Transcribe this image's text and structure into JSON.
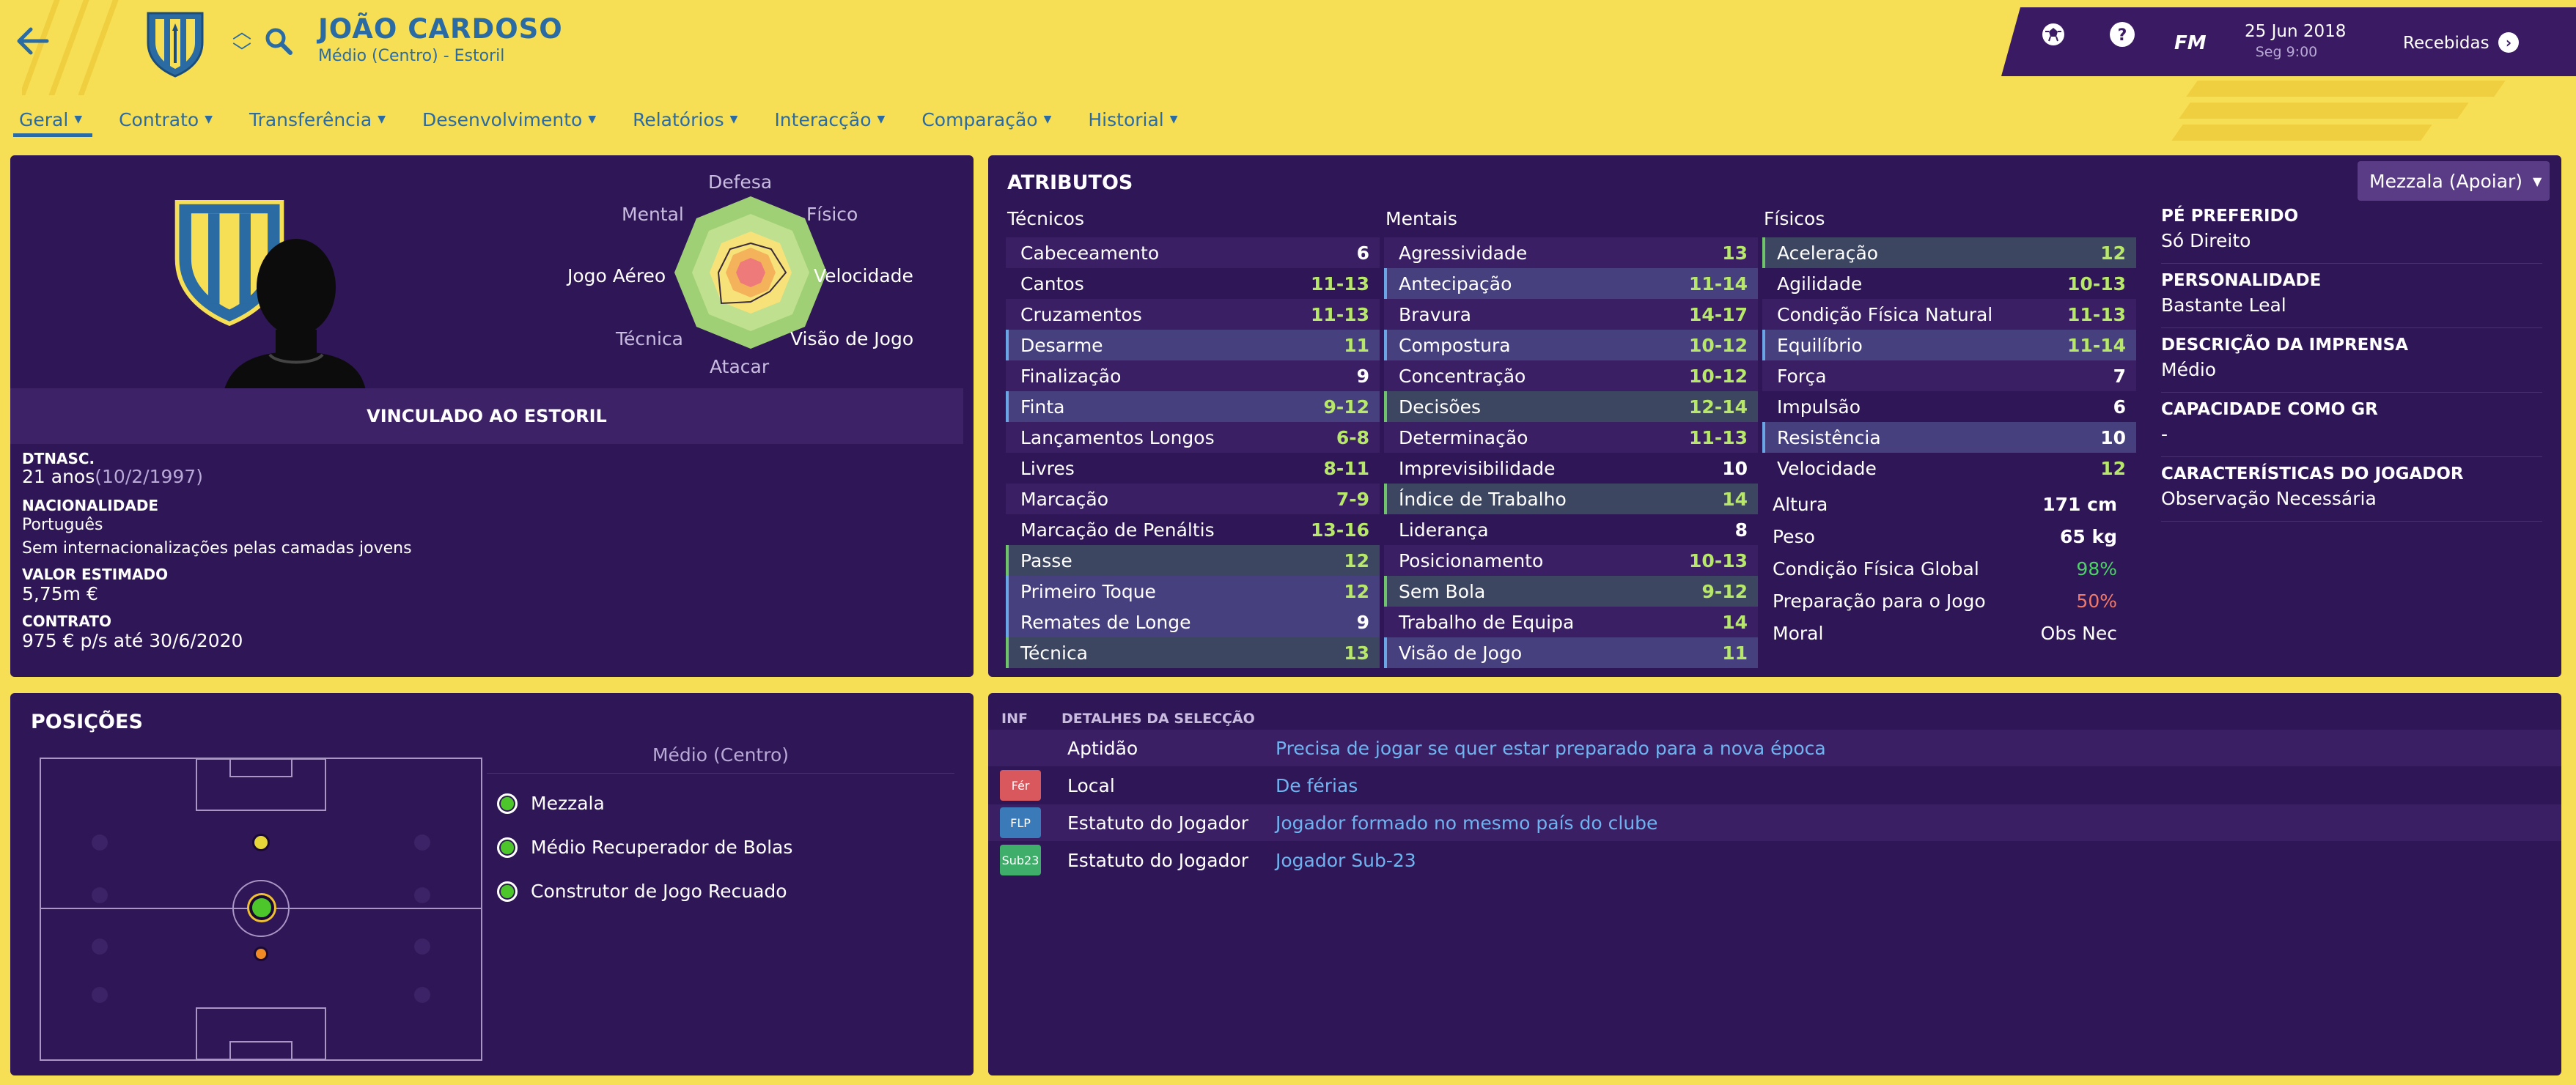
{
  "header": {
    "player_name": "JOÃO CARDOSO",
    "player_subtitle": "Médio (Centro) - Estoril",
    "logo": "FM",
    "date": "25 Jun 2018",
    "day_time": "Seg 9:00",
    "inbox_label": "Recebidas"
  },
  "menu": [
    {
      "label": "Geral"
    },
    {
      "label": "Contrato"
    },
    {
      "label": "Transferência"
    },
    {
      "label": "Desenvolvimento"
    },
    {
      "label": "Relatórios"
    },
    {
      "label": "Interacção"
    },
    {
      "label": "Comparação"
    },
    {
      "label": "Historial"
    }
  ],
  "general": {
    "radar_labels": {
      "top": "Defesa",
      "top_left": "Mental",
      "top_right": "Físico",
      "left": "Jogo Aéreo",
      "right": "Velocidade",
      "bottom_left": "Técnica",
      "bottom_right": "Visão de Jogo",
      "bottom": "Atacar"
    },
    "contract_banner": "VINCULADO AO ESTORIL",
    "dob_label": "DTNASC.",
    "age": "21 anos",
    "dob": "(10/2/1997)",
    "nationality_label": "NACIONALIDADE",
    "nationality": "Português",
    "youth_caps": "Sem internacionalizações pelas camadas jovens",
    "value_label": "VALOR ESTIMADO",
    "value": "5,75m €",
    "contract_label": "CONTRATO",
    "contract": "975 € p/s até 30/6/2020"
  },
  "attributes": {
    "title": "ATRIBUTOS",
    "role_selector": "Mezzala (Apoiar)",
    "technical_heading": "Técnicos",
    "mental_heading": "Mentais",
    "physical_heading": "Físicos",
    "technical": [
      {
        "name": "Cabeceamento",
        "value": "6",
        "hl": ""
      },
      {
        "name": "Cantos",
        "value": "11-13",
        "hl": ""
      },
      {
        "name": "Cruzamentos",
        "value": "11-13",
        "hl": ""
      },
      {
        "name": "Desarme",
        "value": "11",
        "hl": "blue"
      },
      {
        "name": "Finalização",
        "value": "9",
        "hl": ""
      },
      {
        "name": "Finta",
        "value": "9-12",
        "hl": "blue"
      },
      {
        "name": "Lançamentos Longos",
        "value": "6-8",
        "hl": ""
      },
      {
        "name": "Livres",
        "value": "8-11",
        "hl": ""
      },
      {
        "name": "Marcação",
        "value": "7-9",
        "hl": ""
      },
      {
        "name": "Marcação de Penáltis",
        "value": "13-16",
        "hl": ""
      },
      {
        "name": "Passe",
        "value": "12",
        "hl": "green"
      },
      {
        "name": "Primeiro Toque",
        "value": "12",
        "hl": "blue"
      },
      {
        "name": "Remates de Longe",
        "value": "9",
        "hl": "blue"
      },
      {
        "name": "Técnica",
        "value": "13",
        "hl": "green"
      }
    ],
    "mental": [
      {
        "name": "Agressividade",
        "value": "13",
        "hl": ""
      },
      {
        "name": "Antecipação",
        "value": "11-14",
        "hl": "blue"
      },
      {
        "name": "Bravura",
        "value": "14-17",
        "hl": ""
      },
      {
        "name": "Compostura",
        "value": "10-12",
        "hl": "blue"
      },
      {
        "name": "Concentração",
        "value": "10-12",
        "hl": ""
      },
      {
        "name": "Decisões",
        "value": "12-14",
        "hl": "green"
      },
      {
        "name": "Determinação",
        "value": "11-13",
        "hl": ""
      },
      {
        "name": "Imprevisibilidade",
        "value": "10",
        "hl": ""
      },
      {
        "name": "Índice de Trabalho",
        "value": "14",
        "hl": "green"
      },
      {
        "name": "Liderança",
        "value": "8",
        "hl": ""
      },
      {
        "name": "Posicionamento",
        "value": "10-13",
        "hl": ""
      },
      {
        "name": "Sem Bola",
        "value": "9-12",
        "hl": "green"
      },
      {
        "name": "Trabalho de Equipa",
        "value": "14",
        "hl": ""
      },
      {
        "name": "Visão de Jogo",
        "value": "11",
        "hl": "blue"
      }
    ],
    "physical": [
      {
        "name": "Aceleração",
        "value": "12",
        "hl": "green"
      },
      {
        "name": "Agilidade",
        "value": "10-13",
        "hl": ""
      },
      {
        "name": "Condição Física Natural",
        "value": "11-13",
        "hl": ""
      },
      {
        "name": "Equilíbrio",
        "value": "11-14",
        "hl": "blue"
      },
      {
        "name": "Força",
        "value": "7",
        "hl": ""
      },
      {
        "name": "Impulsão",
        "value": "6",
        "hl": ""
      },
      {
        "name": "Resistência",
        "value": "10",
        "hl": "blue"
      },
      {
        "name": "Velocidade",
        "value": "12",
        "hl": ""
      }
    ],
    "extra": [
      {
        "name": "Altura",
        "value": "171 cm",
        "color": "#ffffff"
      },
      {
        "name": "Peso",
        "value": "65 kg",
        "color": "#ffffff"
      },
      {
        "name": "Condição Física Global",
        "value": "98%",
        "color": "#4fd16a"
      },
      {
        "name": "Preparação para o Jogo",
        "value": "50%",
        "color": "#f07a6a"
      },
      {
        "name": "Moral",
        "value": "Obs Nec",
        "color": "#ffffff"
      }
    ],
    "side": [
      {
        "label": "PÉ PREFERIDO",
        "value": "Só Direito"
      },
      {
        "label": "PERSONALIDADE",
        "value": "Bastante Leal"
      },
      {
        "label": "DESCRIÇÃO DA IMPRENSA",
        "value": "Médio"
      },
      {
        "label": "CAPACIDADE COMO GR",
        "value": "-"
      },
      {
        "label": "CARACTERÍSTICAS DO JOGADOR",
        "value": "Observação Necessária"
      }
    ]
  },
  "positions": {
    "title": "POSIÇÕES",
    "position_heading": "Médio (Centro)",
    "roles": [
      "Mezzala",
      "Médio Recuperador de Bolas",
      "Construtor de Jogo Recuado"
    ]
  },
  "selection": {
    "inf_heading": "INF",
    "details_heading": "DETALHES DA SELECÇÃO",
    "rows": [
      {
        "badge": "",
        "badge_color": "",
        "label": "Aptidão",
        "value": "Precisa de jogar se quer estar preparado para a nova época"
      },
      {
        "badge": "Fér",
        "badge_color": "#d9585e",
        "label": "Local",
        "value": "De férias"
      },
      {
        "badge": "FLP",
        "badge_color": "#3a7ab8",
        "label": "Estatuto do Jogador",
        "value": "Jogador formado no mesmo país do clube"
      },
      {
        "badge": "Sub23",
        "badge_color": "#3fae6a",
        "label": "Estatuto do Jogador",
        "value": "Jogador Sub-23"
      }
    ]
  },
  "colors": {
    "background": "#f7df55",
    "panel": "#2f1656",
    "accent_blue": "#2a6ba3",
    "value_green": "#b8e86a",
    "link_blue": "#6fb4f0"
  }
}
